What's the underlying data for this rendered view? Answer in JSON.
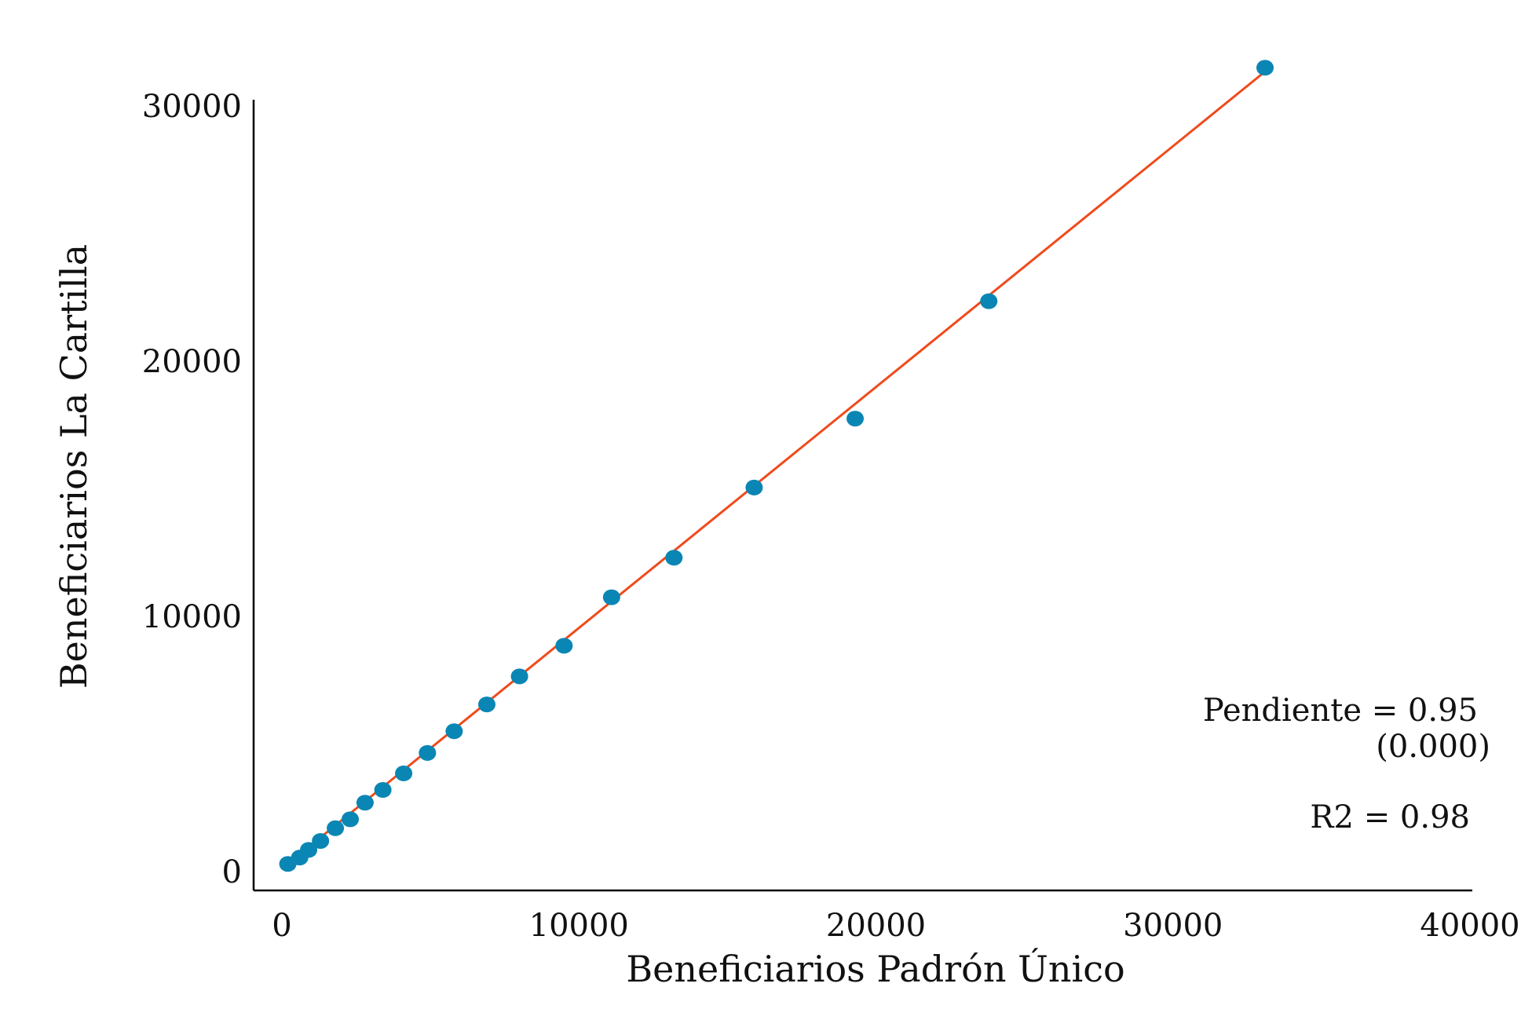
{
  "chart_data": {
    "type": "scatter",
    "xlabel": "Beneficiarios Padrón Único",
    "ylabel": "Beneficiarios La Cartilla",
    "xlim": [
      0,
      40000
    ],
    "ylim": [
      0,
      30000
    ],
    "x_ticks": [
      "0",
      "10000",
      "20000",
      "30000",
      "40000"
    ],
    "y_ticks": [
      "0",
      "10000",
      "20000",
      "30000"
    ],
    "grid": false,
    "series": [
      {
        "points": [
          {
            "x": 200,
            "y": 300
          },
          {
            "x": 600,
            "y": 550
          },
          {
            "x": 900,
            "y": 850
          },
          {
            "x": 1300,
            "y": 1200
          },
          {
            "x": 1800,
            "y": 1700
          },
          {
            "x": 2300,
            "y": 2050
          },
          {
            "x": 2800,
            "y": 2700
          },
          {
            "x": 3400,
            "y": 3200
          },
          {
            "x": 4100,
            "y": 3850
          },
          {
            "x": 4900,
            "y": 4650
          },
          {
            "x": 5800,
            "y": 5500
          },
          {
            "x": 6900,
            "y": 6550
          },
          {
            "x": 8000,
            "y": 7650
          },
          {
            "x": 9500,
            "y": 8850
          },
          {
            "x": 11100,
            "y": 10750
          },
          {
            "x": 13200,
            "y": 12300
          },
          {
            "x": 15900,
            "y": 15050
          },
          {
            "x": 19300,
            "y": 17750
          },
          {
            "x": 23800,
            "y": 22350
          },
          {
            "x": 33100,
            "y": 31500
          }
        ]
      }
    ],
    "fit_line": {
      "x": [
        200,
        33100
      ],
      "y": [
        300,
        31350
      ]
    },
    "annotations": {
      "slope_text": "Pendiente = 0.95",
      "slope_se_text": "(0.000)",
      "r2_text": "R2 = 0.98"
    },
    "colors": {
      "points": "#0a86b4",
      "fit_line": "#f04a1c",
      "axis": "#000000"
    }
  }
}
